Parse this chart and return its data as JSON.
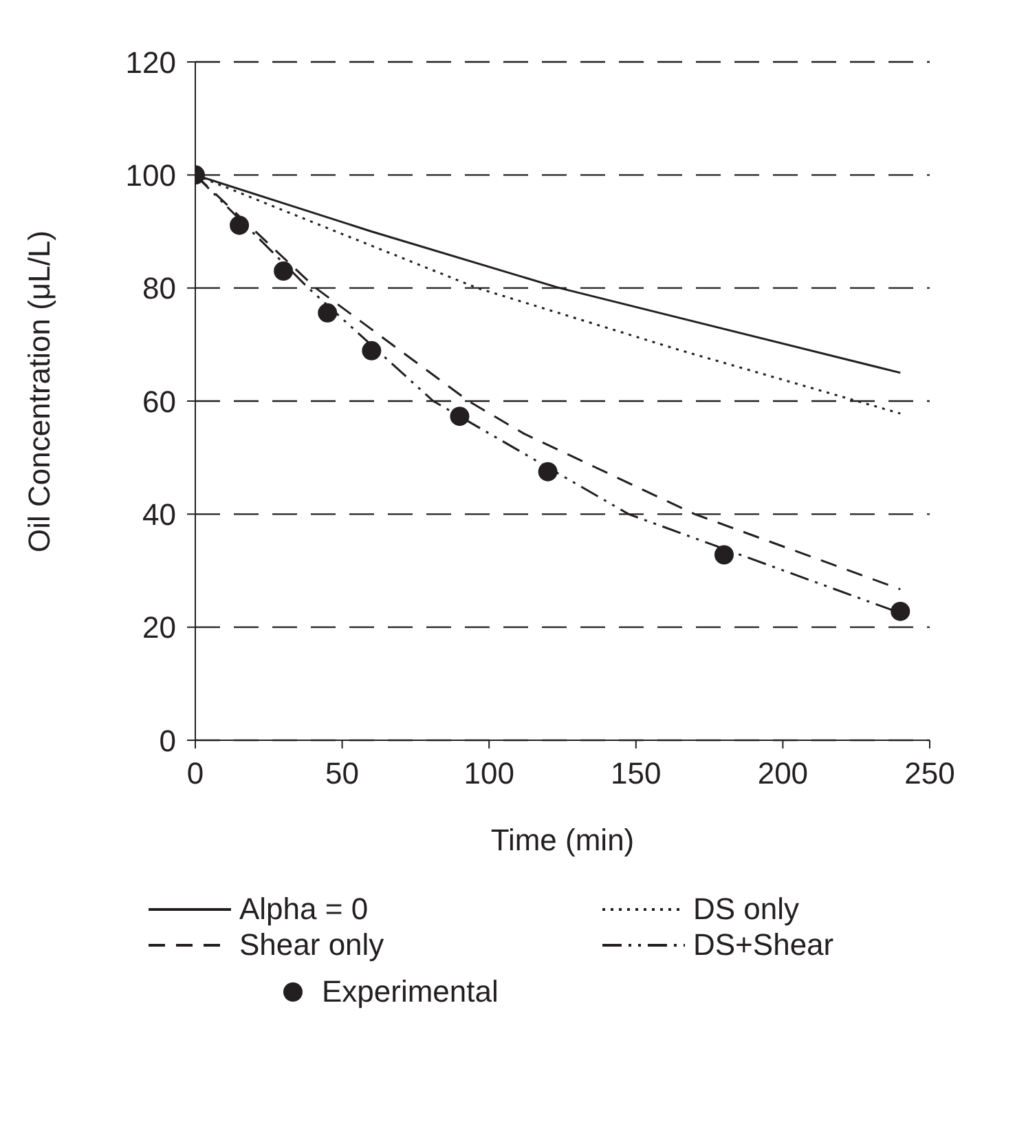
{
  "chart_data": {
    "type": "line",
    "xlabel": "Time (min)",
    "ylabel": "Oil Concentration (μL/L)",
    "xlim": [
      0,
      250
    ],
    "xticks": [
      0,
      50,
      100,
      150,
      200,
      250
    ],
    "ylim": [
      0,
      120
    ],
    "yticks": [
      0,
      20,
      40,
      60,
      80,
      100,
      120
    ],
    "grid": "y",
    "legend": "bottom",
    "series": [
      {
        "name": "Alpha = 0",
        "color": "#231f20",
        "line_style": "solid",
        "marker": "none",
        "x": [
          0,
          60,
          124,
          240
        ],
        "values": [
          100,
          90,
          80,
          65
        ]
      },
      {
        "name": "DS only",
        "color": "#231f20",
        "line_style": "dotted",
        "marker": "none",
        "x": [
          0,
          45,
          96,
          165,
          240
        ],
        "values": [
          100,
          90.6,
          80,
          69,
          57.8
        ]
      },
      {
        "name": "Shear only",
        "color": "#231f20",
        "line_style": "dashed",
        "marker": "none",
        "x": [
          0,
          41,
          93,
          112,
          170,
          240
        ],
        "values": [
          100,
          80,
          60,
          54.2,
          40,
          26.7
        ]
      },
      {
        "name": "DS+Shear",
        "color": "#231f20",
        "line_style": "dashdot",
        "marker": "none",
        "x": [
          0,
          38.5,
          81,
          147.5,
          240
        ],
        "values": [
          100,
          80,
          60,
          40,
          22.5
        ]
      },
      {
        "name": "Experimental",
        "type": "scatter",
        "color": "#231f20",
        "marker": "circle",
        "x": [
          0,
          15,
          30,
          45,
          60,
          90,
          120,
          180,
          240
        ],
        "values": [
          100,
          91.1,
          83,
          75.6,
          68.9,
          57.3,
          47.5,
          32.8,
          22.8
        ]
      }
    ]
  }
}
